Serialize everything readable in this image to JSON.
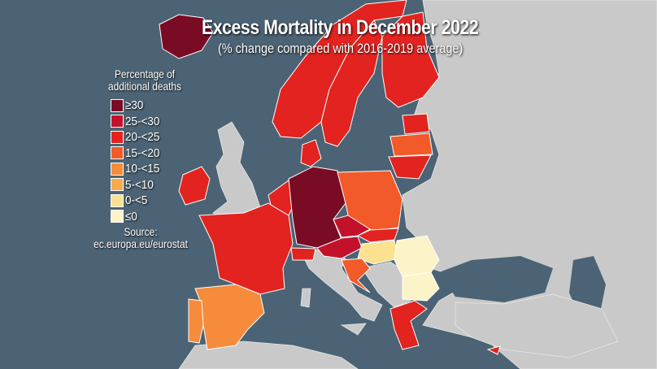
{
  "title": "Excess Mortality in December 2022",
  "subtitle": "(% change compared with 2016-2019 average)",
  "legend": {
    "heading_line1": "Percentage of",
    "heading_line2": "additional deaths",
    "items": [
      {
        "label": "≥30",
        "color": "#7a0b24"
      },
      {
        "label": "25-<30",
        "color": "#c3112b"
      },
      {
        "label": "20-<25",
        "color": "#e2231f"
      },
      {
        "label": "15-<20",
        "color": "#f25a29"
      },
      {
        "label": "10-<15",
        "color": "#f68b3b"
      },
      {
        "label": "5-<10",
        "color": "#f8ab4c"
      },
      {
        "label": "0-<5",
        "color": "#fbe190"
      },
      {
        "label": "≤0",
        "color": "#fdf3c9"
      }
    ],
    "source_label": "Source:",
    "source_url": "ec.europa.eu/eurostat"
  },
  "colors": {
    "sea": "#4b6374",
    "land_no_data": "#c9c9c9"
  }
}
